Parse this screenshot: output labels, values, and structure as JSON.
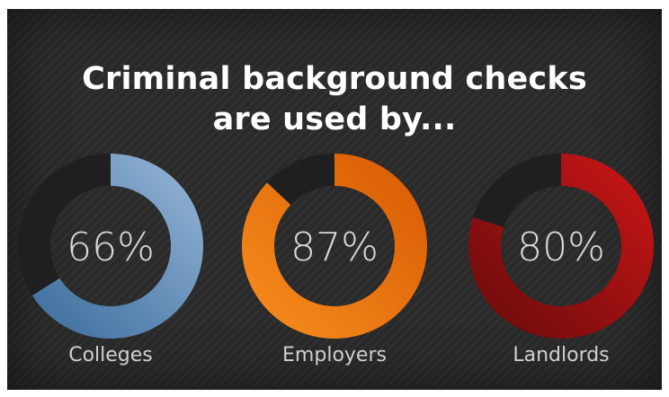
{
  "chart_data": {
    "type": "donut",
    "title_lines": [
      "Criminal background checks",
      "are used by..."
    ],
    "categories": [
      "Colleges",
      "Employers",
      "Landlords"
    ],
    "values": [
      66,
      87,
      80
    ],
    "value_labels": [
      "66%",
      "87%",
      "80%"
    ],
    "max": 100,
    "colors": [
      "#5f8fbf",
      "#ef7a12",
      "#b51212"
    ],
    "track_color": "#1f1f1f"
  }
}
